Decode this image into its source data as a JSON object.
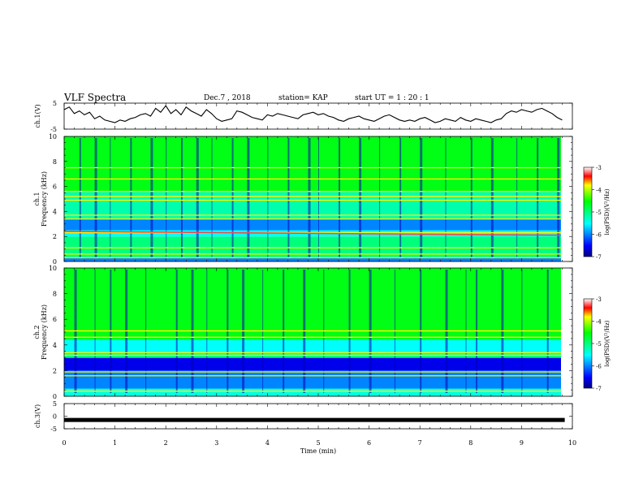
{
  "header": {
    "title": "VLF Spectra",
    "date": "Dec.7 , 2018",
    "station": "station= KAP",
    "start": "start  UT =   1 : 20 : 1"
  },
  "chart_data": [
    {
      "type": "line",
      "panel": "ch1-waveform",
      "ylabel": "ch.1(V)",
      "ylim": [
        -5,
        5
      ],
      "yticks": [
        5,
        -5
      ],
      "x": [
        0.0,
        0.1,
        0.2,
        0.3,
        0.4,
        0.5,
        0.6,
        0.7,
        0.8,
        0.9,
        1.0,
        1.1,
        1.2,
        1.3,
        1.4,
        1.5,
        1.6,
        1.7,
        1.8,
        1.9,
        2.0,
        2.1,
        2.2,
        2.3,
        2.4,
        2.5,
        2.6,
        2.7,
        2.8,
        2.9,
        3.0,
        3.1,
        3.2,
        3.3,
        3.4,
        3.5,
        3.6,
        3.7,
        3.8,
        3.9,
        4.0,
        4.1,
        4.2,
        4.3,
        4.4,
        4.5,
        4.6,
        4.7,
        4.8,
        4.9,
        5.0,
        5.1,
        5.2,
        5.3,
        5.4,
        5.5,
        5.6,
        5.7,
        5.8,
        5.9,
        6.0,
        6.1,
        6.2,
        6.3,
        6.4,
        6.5,
        6.6,
        6.7,
        6.8,
        6.9,
        7.0,
        7.1,
        7.2,
        7.3,
        7.4,
        7.5,
        7.6,
        7.7,
        7.8,
        7.9,
        8.0,
        8.1,
        8.2,
        8.3,
        8.4,
        8.5,
        8.6,
        8.7,
        8.8,
        8.9,
        9.0,
        9.1,
        9.2,
        9.3,
        9.4,
        9.5,
        9.6,
        9.7,
        9.8
      ],
      "values": [
        2.5,
        3.5,
        1.0,
        2.0,
        0.5,
        1.5,
        -1.0,
        0.0,
        -1.5,
        -2.0,
        -2.5,
        -1.5,
        -2.0,
        -1.0,
        -0.5,
        0.5,
        1.0,
        0.0,
        3.0,
        1.5,
        4.0,
        1.0,
        2.5,
        0.5,
        3.5,
        2.0,
        1.0,
        0.0,
        2.5,
        1.0,
        -1.0,
        -2.0,
        -1.5,
        -1.0,
        2.0,
        1.5,
        0.5,
        -0.5,
        -1.0,
        -1.5,
        0.5,
        0.0,
        1.0,
        0.5,
        0.0,
        -0.5,
        -1.0,
        0.5,
        1.0,
        1.5,
        0.5,
        1.0,
        0.0,
        -0.5,
        -1.5,
        -2.0,
        -1.0,
        -0.5,
        0.0,
        -1.0,
        -1.5,
        -2.0,
        -1.0,
        0.0,
        0.5,
        -0.5,
        -1.5,
        -2.0,
        -1.5,
        -2.0,
        -1.0,
        -0.5,
        -1.5,
        -2.5,
        -2.0,
        -1.0,
        -1.5,
        -2.0,
        -0.5,
        -1.5,
        -2.0,
        -1.0,
        -1.5,
        -2.0,
        -2.5,
        -1.5,
        -1.0,
        1.0,
        2.0,
        1.5,
        2.5,
        2.0,
        1.5,
        2.5,
        3.0,
        2.0,
        1.0,
        -0.5,
        -1.5
      ]
    },
    {
      "type": "heatmap",
      "panel": "ch1-spectrogram",
      "ylabel_lines": [
        "ch.1",
        "Frequency  (kHz)"
      ],
      "ylim": [
        0,
        10
      ],
      "yticks": [
        0,
        2,
        4,
        6,
        8,
        10
      ],
      "colorbar": {
        "label": "log(PSD)(V²/Hz)",
        "range": [
          -7,
          -3
        ],
        "ticks": [
          -3,
          -4,
          -5,
          -6,
          -7
        ]
      },
      "background_bands_khz": [
        {
          "from": 0,
          "to": 0.3,
          "level": -6.0
        },
        {
          "from": 0.3,
          "to": 2.0,
          "level": -5.0
        },
        {
          "from": 2.0,
          "to": 2.5,
          "level": -5.5
        },
        {
          "from": 2.5,
          "to": 3.4,
          "level": -6.0
        },
        {
          "from": 3.4,
          "to": 5.6,
          "level": -5.2
        },
        {
          "from": 5.6,
          "to": 10,
          "level": -4.6
        }
      ],
      "lines_khz": [
        0.3,
        0.6,
        1.1,
        2.3,
        3.4,
        3.7,
        4.9,
        5.2,
        5.6,
        6.6,
        7.5
      ],
      "line_level": -3.8,
      "drift_line": {
        "from_khz": 2.4,
        "to_khz": 2.1,
        "level": -3.3
      },
      "burst_times_min": [
        0.3,
        0.6,
        0.9,
        1.3,
        1.7,
        2.0,
        2.3,
        2.6,
        2.9,
        3.3,
        3.6,
        4.0,
        4.4,
        4.8,
        5.0,
        5.4,
        5.8,
        6.2,
        6.6,
        7.0,
        7.5,
        8.0,
        8.4,
        8.9,
        9.3,
        9.7
      ],
      "burst_level": -6.8
    },
    {
      "type": "heatmap",
      "panel": "ch2-spectrogram",
      "ylabel_lines": [
        "ch.2",
        "Frequency  (kHz)"
      ],
      "ylim": [
        0,
        10
      ],
      "yticks": [
        0,
        2,
        4,
        6,
        8,
        10
      ],
      "colorbar": {
        "label": "log(PSD)(V²/Hz)",
        "range": [
          -7,
          -3
        ],
        "ticks": [
          -3,
          -4,
          -5,
          -6,
          -7
        ]
      },
      "background_bands_khz": [
        {
          "from": 0,
          "to": 0.6,
          "level": -5.4
        },
        {
          "from": 0.6,
          "to": 2.0,
          "level": -6.0
        },
        {
          "from": 2.0,
          "to": 3.0,
          "level": -6.6
        },
        {
          "from": 3.0,
          "to": 3.4,
          "level": -5.0
        },
        {
          "from": 3.4,
          "to": 4.4,
          "level": -5.5
        },
        {
          "from": 4.4,
          "to": 10,
          "level": -4.6
        }
      ],
      "lines_khz": [
        0.4,
        1.6,
        1.9,
        3.2,
        3.4,
        4.6,
        5.1
      ],
      "line_level": -3.8,
      "burst_times_min": [
        0.2,
        0.6,
        0.9,
        1.2,
        1.6,
        2.2,
        2.5,
        2.8,
        3.2,
        3.5,
        3.9,
        4.3,
        4.7,
        5.1,
        5.6,
        6.0,
        6.5,
        7.0,
        7.5,
        7.9,
        8.1,
        8.6,
        9.0,
        9.5
      ],
      "burst_level": -6.8
    },
    {
      "type": "line",
      "panel": "ch3-waveform",
      "ylabel": "ch.3(V)",
      "ylim": [
        -5,
        5
      ],
      "yticks": [
        5,
        0,
        -5
      ],
      "x": [
        0,
        9.85
      ],
      "values": [
        -1.5,
        -1.5
      ]
    }
  ],
  "x_axis": {
    "label": "Time  (min)",
    "range": [
      0,
      10
    ],
    "ticks": [
      0,
      1,
      2,
      3,
      4,
      5,
      6,
      7,
      8,
      9,
      10
    ]
  },
  "colors": {
    "line": "#000000",
    "frame": "#000000"
  }
}
